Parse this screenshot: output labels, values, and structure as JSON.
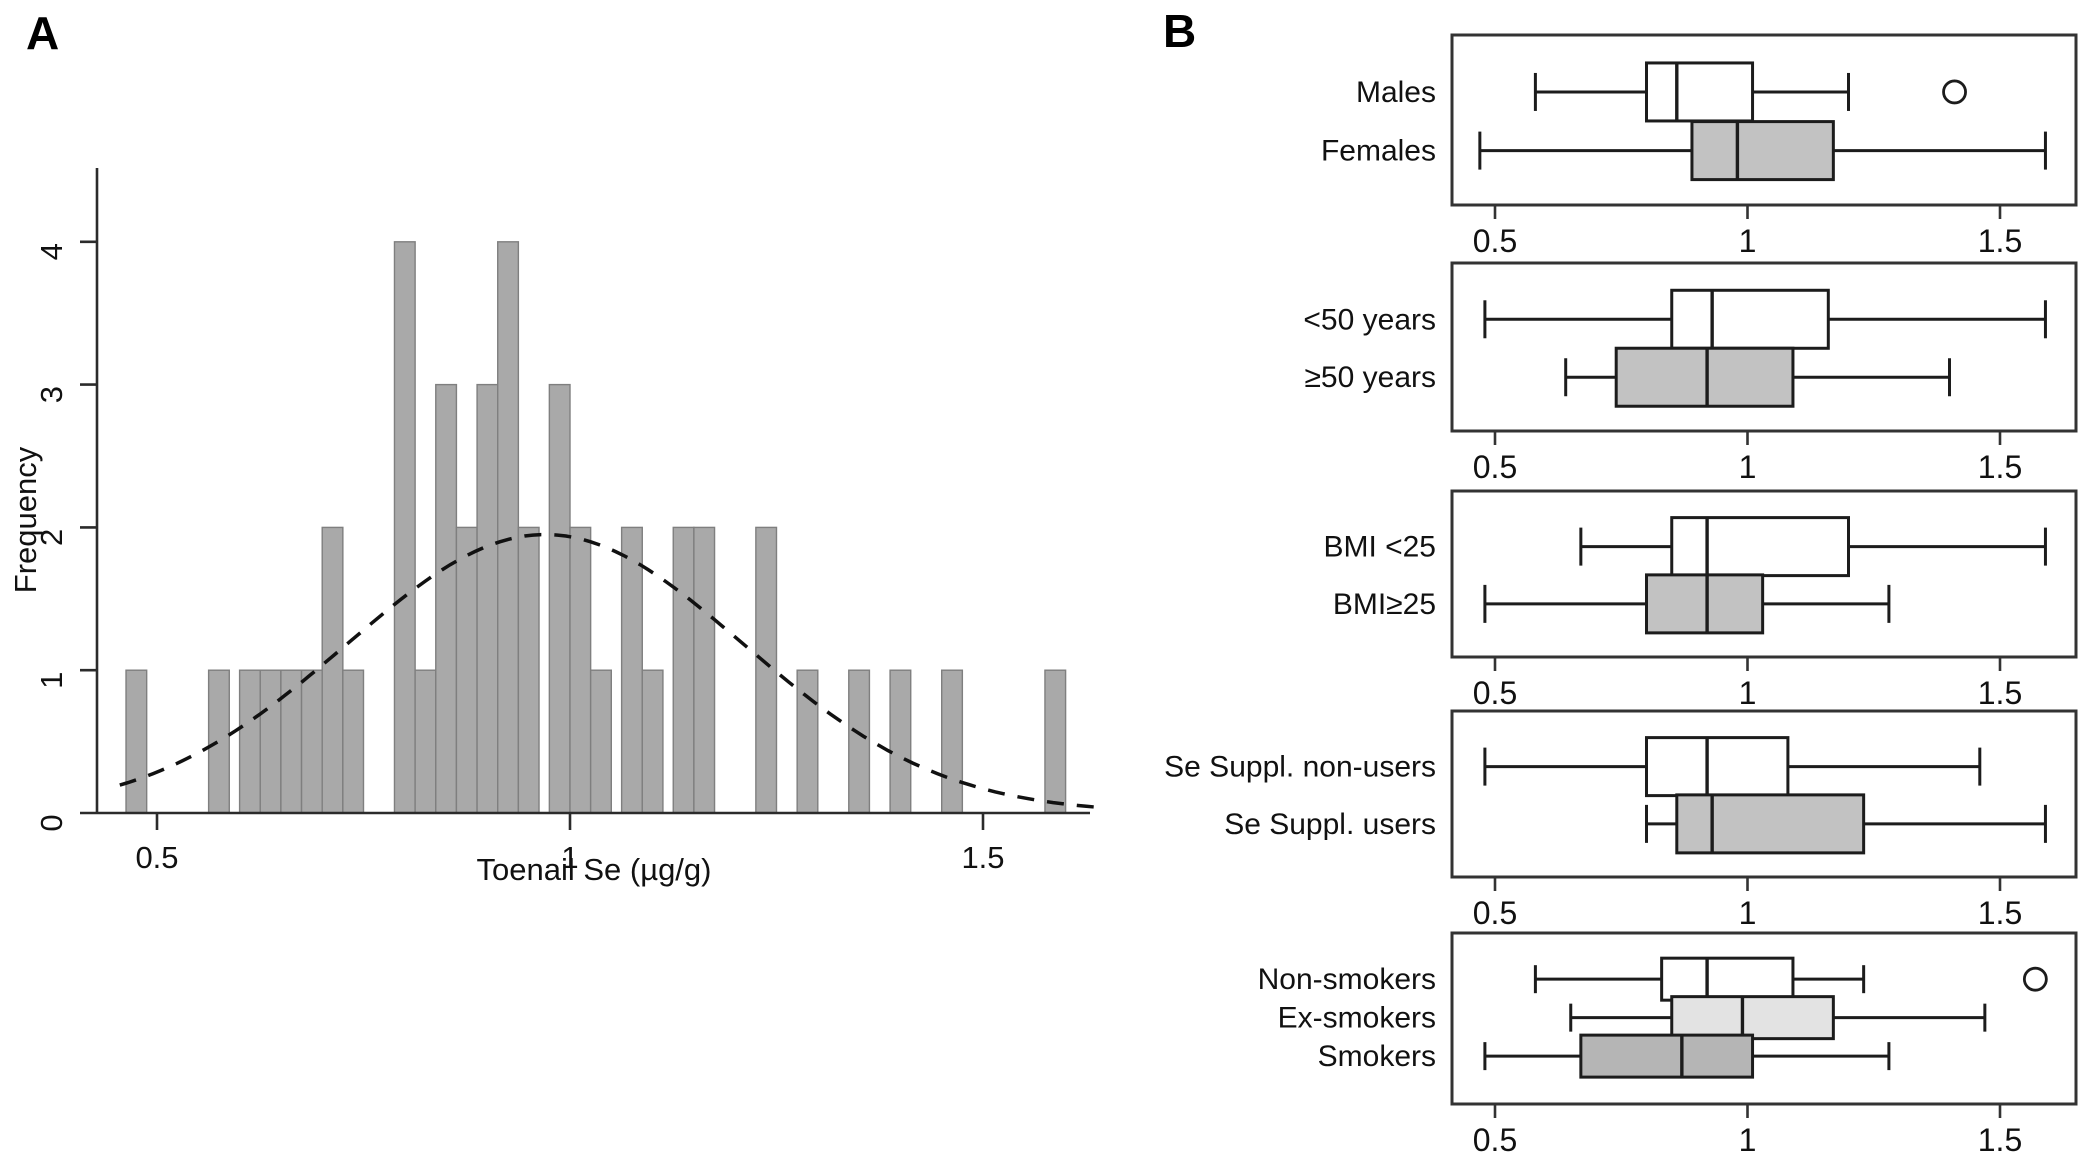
{
  "figure": {
    "panel_a_label": "A",
    "panel_b_label": "B"
  },
  "colors": {
    "bar_fill": "#a9a9a9",
    "bar_stroke": "#7f7f7f",
    "axis": "#2b2b2b",
    "curve": "#111111",
    "box_white": "#ffffff",
    "box_gray": "#c2c2c2",
    "box_light_gray": "#e3e3e3",
    "box_mid_gray": "#b5b5b5",
    "frame": "#333333",
    "text": "#111111"
  },
  "chart_data": [
    {
      "id": "toenail-se-histogram",
      "type": "bar",
      "title": "",
      "xlabel": "Toenail Se (µg/g)",
      "ylabel": "Frequency",
      "xlim": [
        0.42,
        1.66
      ],
      "ylim": [
        0,
        4
      ],
      "grid": false,
      "x_ticks": [
        {
          "v": 0.5,
          "label": "0.5"
        },
        {
          "v": 1.0,
          "label": "1"
        },
        {
          "v": 1.5,
          "label": "1.5"
        }
      ],
      "y_ticks": [
        {
          "v": 0,
          "label": "0"
        },
        {
          "v": 1,
          "label": "1"
        },
        {
          "v": 2,
          "label": "2"
        },
        {
          "v": 3,
          "label": "3"
        },
        {
          "v": 4,
          "label": "4"
        }
      ],
      "bin_width": 0.025,
      "bins": [
        {
          "center": 0.475,
          "freq": 1
        },
        {
          "center": 0.575,
          "freq": 1
        },
        {
          "center": 0.6125,
          "freq": 1
        },
        {
          "center": 0.6375,
          "freq": 1
        },
        {
          "center": 0.6625,
          "freq": 1
        },
        {
          "center": 0.6875,
          "freq": 1
        },
        {
          "center": 0.7125,
          "freq": 2
        },
        {
          "center": 0.7375,
          "freq": 1
        },
        {
          "center": 0.8,
          "freq": 4
        },
        {
          "center": 0.825,
          "freq": 1
        },
        {
          "center": 0.85,
          "freq": 3
        },
        {
          "center": 0.875,
          "freq": 2
        },
        {
          "center": 0.9,
          "freq": 3
        },
        {
          "center": 0.925,
          "freq": 4
        },
        {
          "center": 0.95,
          "freq": 2
        },
        {
          "center": 0.9875,
          "freq": 3
        },
        {
          "center": 1.0125,
          "freq": 2
        },
        {
          "center": 1.0375,
          "freq": 1
        },
        {
          "center": 1.075,
          "freq": 2
        },
        {
          "center": 1.1,
          "freq": 1
        },
        {
          "center": 1.1375,
          "freq": 2
        },
        {
          "center": 1.1625,
          "freq": 2
        },
        {
          "center": 1.2375,
          "freq": 2
        },
        {
          "center": 1.2875,
          "freq": 1
        },
        {
          "center": 1.35,
          "freq": 1
        },
        {
          "center": 1.4,
          "freq": 1
        },
        {
          "center": 1.4625,
          "freq": 1
        },
        {
          "center": 1.5875,
          "freq": 1
        }
      ],
      "normal_curve": {
        "mean": 0.97,
        "sd": 0.24,
        "peak": 1.95,
        "style": "dashed"
      }
    },
    {
      "id": "toenail-se-boxplots",
      "type": "boxplot",
      "orientation": "horizontal",
      "xlim": [
        0.42,
        1.66
      ],
      "x_ticks": [
        {
          "v": 0.5,
          "label": "0.5"
        },
        {
          "v": 1.0,
          "label": "1"
        },
        {
          "v": 1.5,
          "label": "1.5"
        }
      ],
      "subpanels": [
        {
          "groups": [
            {
              "label": "Males",
              "fill": "white",
              "whisker_low": 0.58,
              "q1": 0.8,
              "median": 0.86,
              "q3": 1.01,
              "whisker_high": 1.2,
              "outliers": [
                1.41
              ]
            },
            {
              "label": "Females",
              "fill": "gray",
              "whisker_low": 0.47,
              "q1": 0.89,
              "median": 0.98,
              "q3": 1.17,
              "whisker_high": 1.59,
              "outliers": []
            }
          ]
        },
        {
          "groups": [
            {
              "label": "<50 years",
              "fill": "white",
              "whisker_low": 0.48,
              "q1": 0.85,
              "median": 0.93,
              "q3": 1.16,
              "whisker_high": 1.59,
              "outliers": []
            },
            {
              "label": "≥50 years",
              "fill": "gray",
              "whisker_low": 0.64,
              "q1": 0.74,
              "median": 0.92,
              "q3": 1.09,
              "whisker_high": 1.4,
              "outliers": []
            }
          ]
        },
        {
          "groups": [
            {
              "label": "BMI <25",
              "fill": "white",
              "whisker_low": 0.67,
              "q1": 0.85,
              "median": 0.92,
              "q3": 1.2,
              "whisker_high": 1.59,
              "outliers": []
            },
            {
              "label": "BMI≥25",
              "fill": "gray",
              "whisker_low": 0.48,
              "q1": 0.8,
              "median": 0.92,
              "q3": 1.03,
              "whisker_high": 1.28,
              "outliers": []
            }
          ]
        },
        {
          "groups": [
            {
              "label": "Se Suppl. non-users",
              "fill": "white",
              "whisker_low": 0.48,
              "q1": 0.8,
              "median": 0.92,
              "q3": 1.08,
              "whisker_high": 1.46,
              "outliers": []
            },
            {
              "label": "Se Suppl. users",
              "fill": "gray",
              "whisker_low": 0.8,
              "q1": 0.86,
              "median": 0.93,
              "q3": 1.23,
              "whisker_high": 1.59,
              "outliers": []
            }
          ]
        },
        {
          "groups": [
            {
              "label": "Non-smokers",
              "fill": "white",
              "whisker_low": 0.58,
              "q1": 0.83,
              "median": 0.92,
              "q3": 1.09,
              "whisker_high": 1.23,
              "outliers": [
                1.57
              ]
            },
            {
              "label": "Ex-smokers",
              "fill": "light_gray",
              "whisker_low": 0.65,
              "q1": 0.85,
              "median": 0.99,
              "q3": 1.17,
              "whisker_high": 1.47,
              "outliers": []
            },
            {
              "label": "Smokers",
              "fill": "mid_gray",
              "whisker_low": 0.48,
              "q1": 0.67,
              "median": 0.87,
              "q3": 1.01,
              "whisker_high": 1.28,
              "outliers": []
            }
          ]
        }
      ]
    }
  ]
}
